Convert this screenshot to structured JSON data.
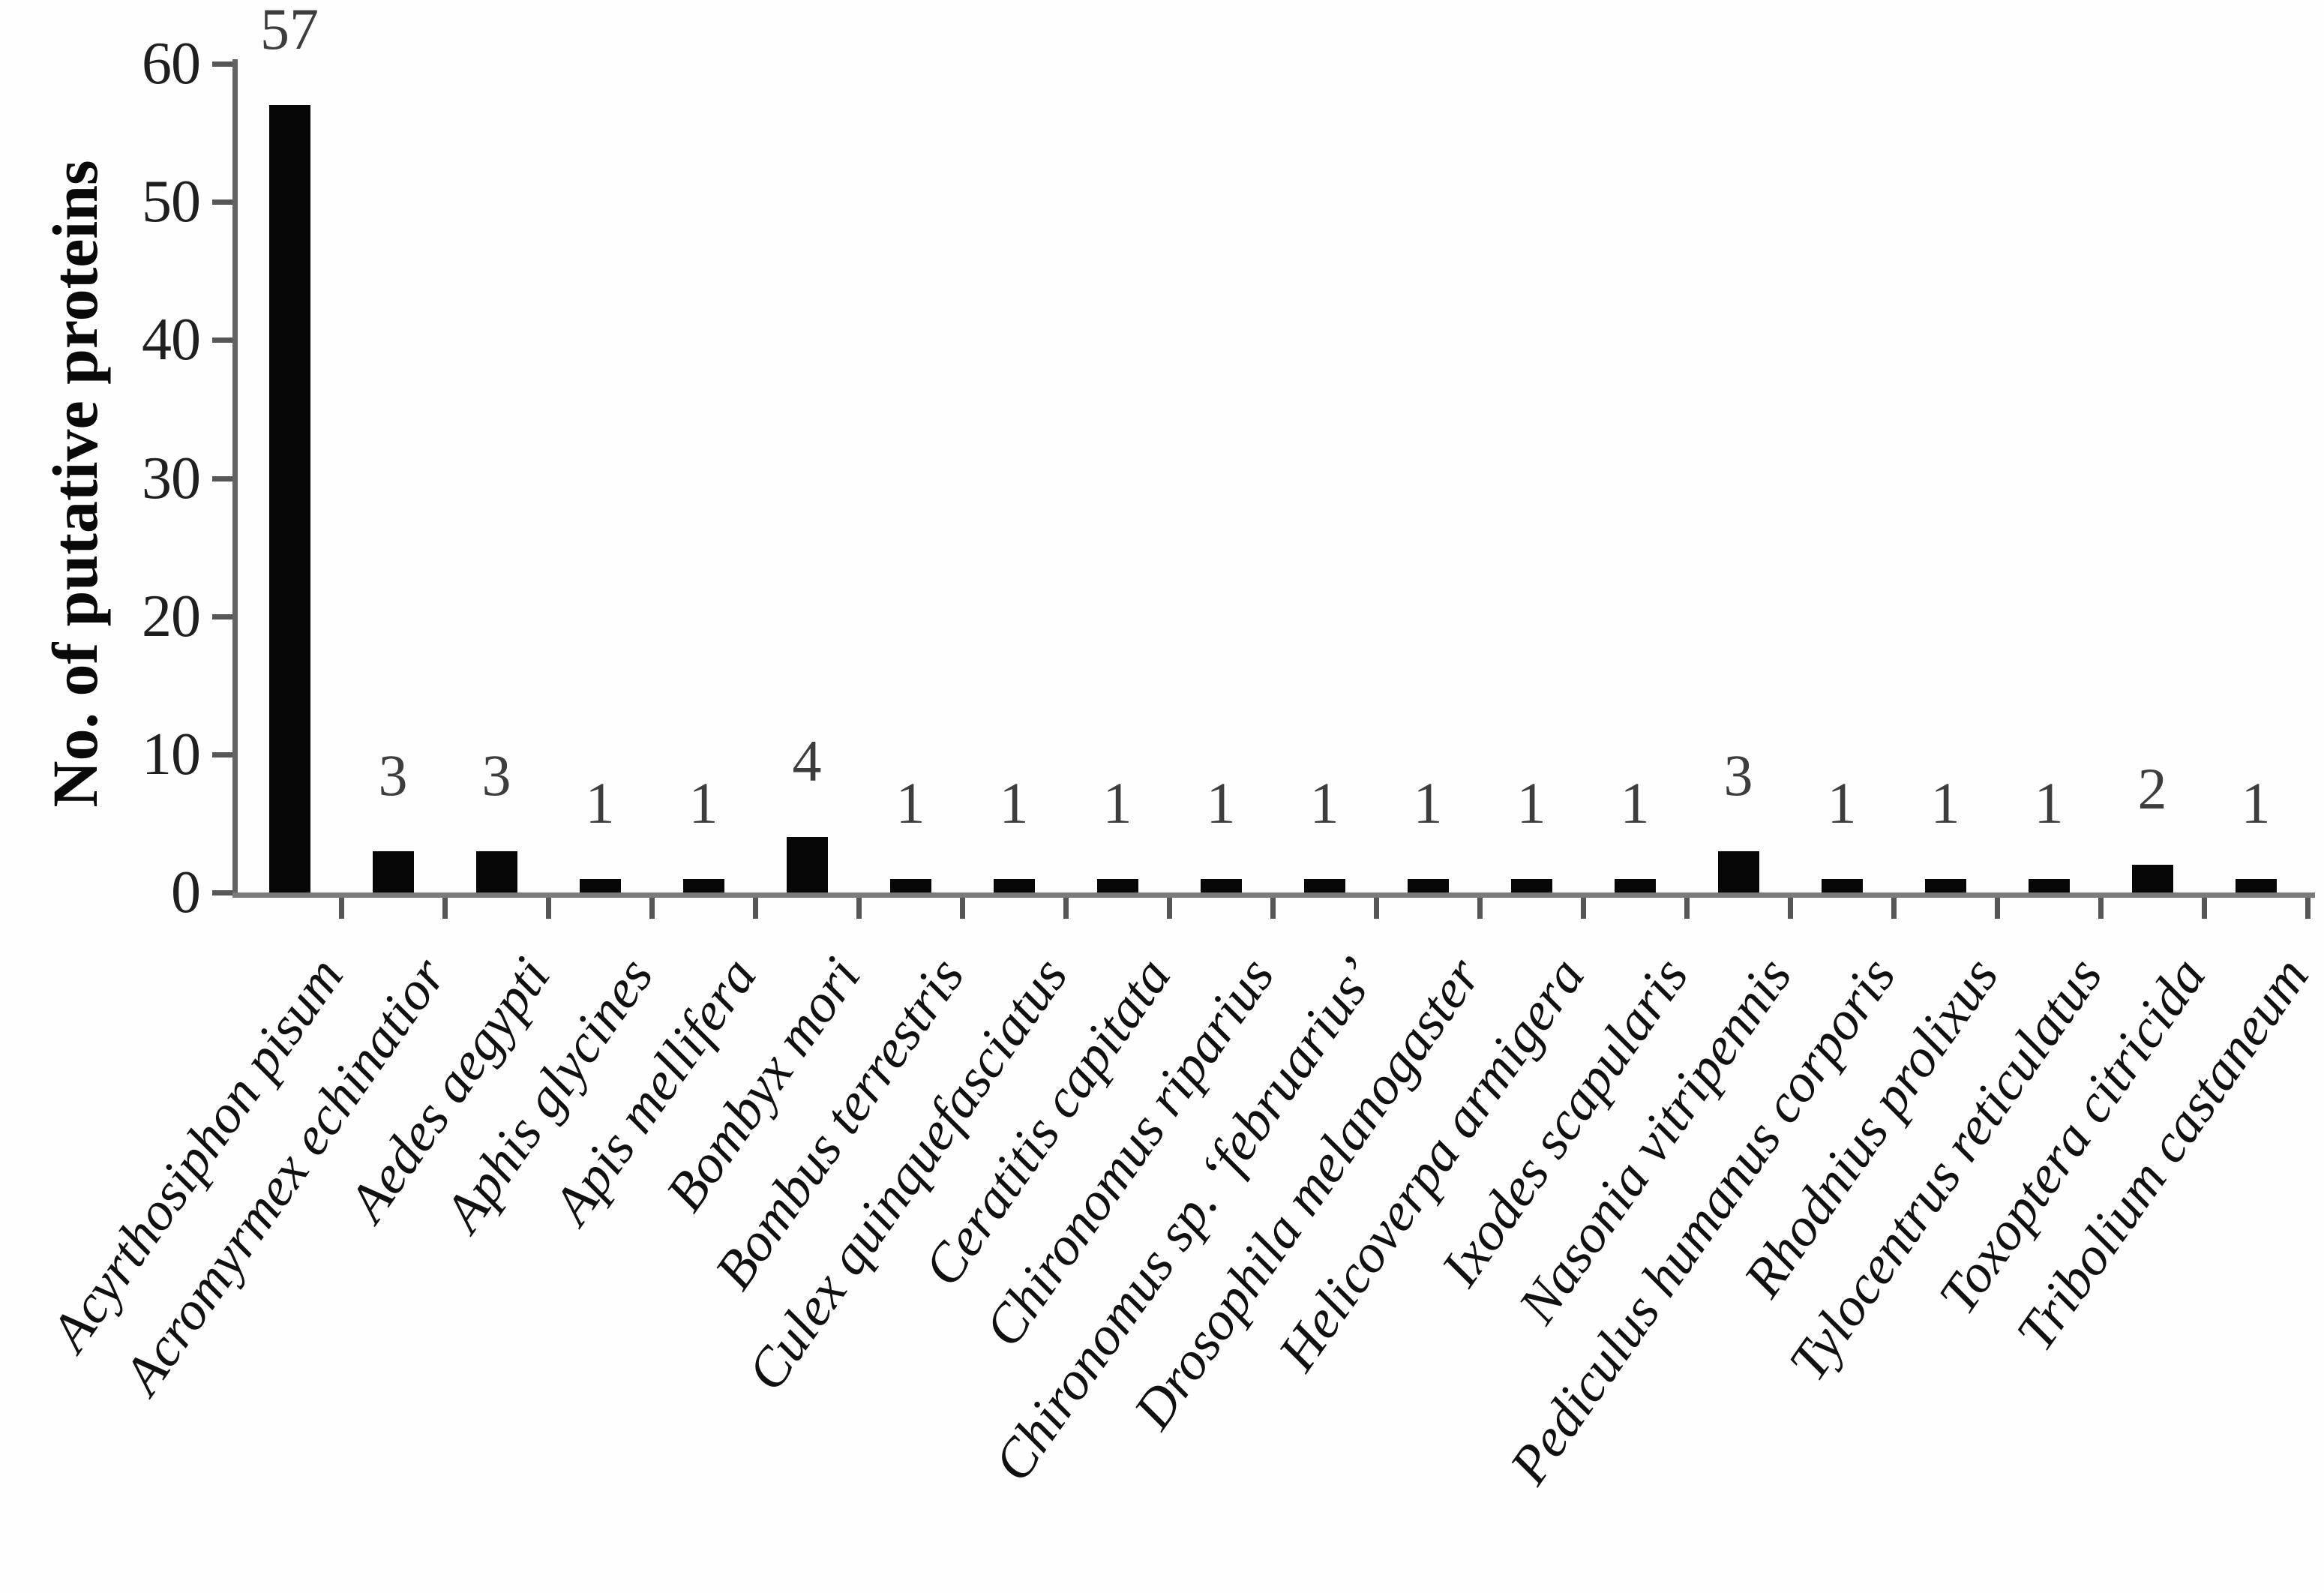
{
  "chart_data": {
    "type": "bar",
    "title": "",
    "xlabel": "",
    "ylabel": "No. of putative proteins",
    "ylim": [
      0,
      60
    ],
    "yticks": [
      0,
      10,
      20,
      30,
      40,
      50,
      60
    ],
    "grid": false,
    "legend": false,
    "bar_color": "#060606",
    "axis_color": "#6a6a6a",
    "tick_color": "#565656",
    "tick_label_color": "#1f1f1f",
    "value_label_color": "#3d3d3d",
    "species_label_color": "#101010",
    "categories": [
      "Acyrthosiphon pisum",
      "Acromyrmex echinatior",
      "Aedes aegypti",
      "Aphis glycines",
      "Apis mellifera",
      "Bombyx mori",
      "Bombus terrestris",
      "Culex quinquefasciatus",
      "Ceratitis capitata",
      "Chironomus riparius",
      "Chironomus sp. ‘februarius’",
      "Drosophila melanogaster",
      "Helicoverpa armigera",
      "Ixodes scapularis",
      "Nasonia vitripennis",
      "Pediculus humanus corporis",
      "Rhodnius prolixus",
      "Tylocentrus reticulatus",
      "Toxoptera citricida",
      "Tribolium castaneum"
    ],
    "values": [
      57,
      3,
      3,
      1,
      1,
      4,
      1,
      1,
      1,
      1,
      1,
      1,
      1,
      1,
      3,
      1,
      1,
      1,
      2,
      1
    ]
  }
}
